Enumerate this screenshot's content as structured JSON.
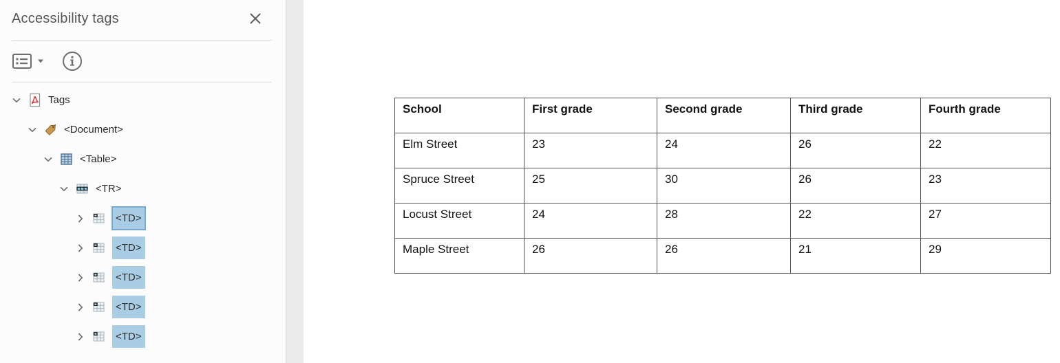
{
  "panel": {
    "title": "Accessibility tags",
    "icons": {
      "close": "close-icon",
      "tag_options": "list-options-icon",
      "info": "info-icon"
    }
  },
  "tree": {
    "items": [
      {
        "label": "Tags",
        "icon": "pdf-tags-icon",
        "expanded": true,
        "level": 0,
        "highlighted": false
      },
      {
        "label": "<Document>",
        "icon": "document-tag-icon",
        "expanded": true,
        "level": 1,
        "highlighted": false
      },
      {
        "label": "<Table>",
        "icon": "table-icon",
        "expanded": true,
        "level": 2,
        "highlighted": false
      },
      {
        "label": "<TR>",
        "icon": "table-row-icon",
        "expanded": true,
        "level": 3,
        "highlighted": false
      },
      {
        "label": "<TD>",
        "icon": "table-cell-icon",
        "expanded": false,
        "level": 4,
        "highlighted": true,
        "selected": true
      },
      {
        "label": "<TD>",
        "icon": "table-cell-icon",
        "expanded": false,
        "level": 4,
        "highlighted": true
      },
      {
        "label": "<TD>",
        "icon": "table-cell-icon",
        "expanded": false,
        "level": 4,
        "highlighted": true
      },
      {
        "label": "<TD>",
        "icon": "table-cell-icon",
        "expanded": false,
        "level": 4,
        "highlighted": true
      },
      {
        "label": "<TD>",
        "icon": "table-cell-icon",
        "expanded": false,
        "level": 4,
        "highlighted": true
      }
    ]
  },
  "document_table": {
    "headers": [
      "School",
      "First grade",
      "Second grade",
      "Third grade",
      "Fourth grade"
    ],
    "rows": [
      [
        "Elm Street",
        "23",
        "24",
        "26",
        "22"
      ],
      [
        "Spruce Street",
        "25",
        "30",
        "26",
        "23"
      ],
      [
        "Locust Street",
        "24",
        "28",
        "22",
        "27"
      ],
      [
        "Maple Street",
        "26",
        "26",
        "21",
        "29"
      ]
    ]
  },
  "colors": {
    "tag_highlight": "#a9cde5",
    "tag_selected_border": "#74aad4",
    "panel_background": "#fcfcfc",
    "canvas_background": "#ebebeb",
    "icon_gray": "#6e6e6e",
    "pdf_red": "#e12723",
    "tag_gold": "#c99a4e",
    "table_icon_blue": "#b9d3e6"
  }
}
